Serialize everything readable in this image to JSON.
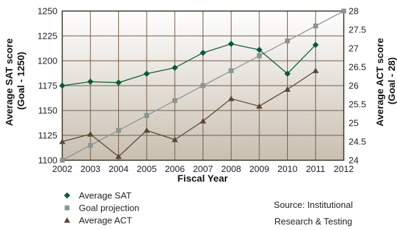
{
  "chart_data": {
    "type": "line",
    "title": "",
    "xlabel": "Fiscal Year",
    "ylabel_left": "Average SAT score (Goal - 1250)",
    "ylabel_left_lines": [
      "Average SAT score",
      "(Goal - 1250)"
    ],
    "ylabel_right": "Average ACT score (Goal - 28)",
    "ylabel_right_lines": [
      "Average ACT score",
      "(Goal - 28)"
    ],
    "x": [
      2002,
      2003,
      2004,
      2005,
      2006,
      2007,
      2008,
      2009,
      2010,
      2011,
      2012
    ],
    "x_tick_labels": [
      "2002",
      "2003",
      "2004",
      "2005",
      "2006",
      "2007",
      "2008",
      "2009",
      "2010",
      "2011",
      "2012"
    ],
    "ylim_left": [
      1100,
      1250
    ],
    "y_ticks_left": [
      "1100",
      "1125",
      "1150",
      "1175",
      "1200",
      "1225",
      "1250"
    ],
    "ylim_right": [
      24,
      28
    ],
    "y_ticks_right": [
      "24",
      "24.5",
      "25",
      "25.5",
      "26",
      "26.5",
      "27",
      "27.5",
      "28"
    ],
    "grid": true,
    "legend_position": "bottom-left",
    "series": [
      {
        "name": "Average SAT",
        "axis": "left",
        "marker": "diamond",
        "color": "#0b5a36",
        "x": [
          2002,
          2003,
          2004,
          2005,
          2006,
          2007,
          2008,
          2009,
          2010,
          2011
        ],
        "values": [
          1175,
          1179,
          1178,
          1187,
          1193,
          1208,
          1217,
          1211,
          1187,
          1216
        ]
      },
      {
        "name": "Goal projection",
        "axis": "left",
        "marker": "square",
        "color": "#8a9590",
        "x": [
          2002,
          2003,
          2004,
          2005,
          2006,
          2007,
          2008,
          2009,
          2010,
          2011,
          2012
        ],
        "values": [
          1100,
          1115,
          1130,
          1145,
          1160,
          1175,
          1190,
          1205,
          1220,
          1235,
          1250
        ]
      },
      {
        "name": "Average ACT",
        "axis": "right",
        "marker": "triangle",
        "color": "#5a4632",
        "x": [
          2002,
          2003,
          2004,
          2005,
          2006,
          2007,
          2008,
          2009,
          2010,
          2011
        ],
        "values": [
          24.5,
          24.7,
          24.1,
          24.8,
          24.55,
          25.05,
          25.65,
          25.45,
          25.9,
          26.4
        ]
      }
    ],
    "source_lines": [
      "Source: Institutional",
      "Research & Testing"
    ]
  },
  "colors": {
    "gradient_top": "#ffffff",
    "gradient_bottom": "#c9bfb0",
    "grid": "#6e5a44",
    "frame": "#3e3326"
  }
}
